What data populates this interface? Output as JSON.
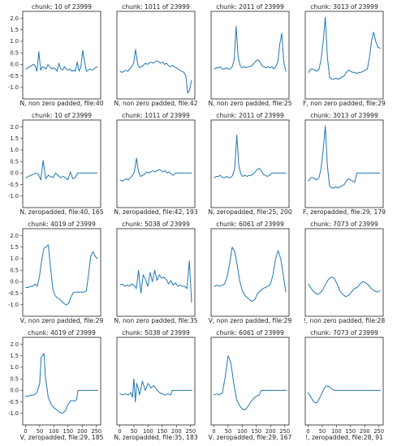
{
  "colors": {
    "series": "#1f77b4",
    "axes": "#222222",
    "background": "#ffffff"
  },
  "chart_data": [
    {
      "type": "line",
      "title": "chunk: 10 of 23999",
      "xlabel": "N, non zero padded, file:40",
      "ylim": [
        -1.5,
        2.3
      ],
      "yticks": [
        "2.0",
        "1.5",
        "1.0",
        "0.5",
        "0.0",
        "-0.5",
        "-1.0"
      ],
      "xticks": [],
      "y": [
        -0.2,
        -0.15,
        -0.1,
        -0.05,
        0,
        -0.05,
        -0.3,
        0.55,
        -0.25,
        -0.1,
        -0.15,
        -0.2,
        0,
        -0.1,
        -0.2,
        -0.15,
        -0.2,
        -0.3,
        0.05,
        -0.2,
        -0.25,
        -0.1,
        -0.2,
        -0.25,
        -0.2,
        -0.3,
        -0.25,
        -0.3,
        0.1,
        -0.3,
        -0.1,
        0.6,
        0.1,
        -0.3,
        -0.25,
        -0.2,
        -0.25,
        -0.2,
        -0.15,
        -0.1
      ]
    },
    {
      "type": "line",
      "title": "chunk: 1011 of 23999",
      "xlabel": "N, non zero padded, file:42",
      "ylim": [
        -1.5,
        2.3
      ],
      "yticks": [],
      "xticks": [],
      "y": [
        -0.3,
        -0.35,
        -0.3,
        -0.25,
        -0.3,
        -0.2,
        -0.1,
        0.05,
        0.65,
        0.05,
        -0.15,
        -0.1,
        -0.05,
        0.05,
        0,
        0.05,
        0.1,
        0.05,
        0.1,
        0.15,
        0.1,
        0.05,
        0.1,
        0,
        0.05,
        -0.05,
        -0.1,
        -0.05,
        -0.1,
        -0.15,
        -0.2,
        -0.25,
        -0.3,
        -0.35,
        -0.5,
        -1.25,
        -1.1,
        -0.7
      ]
    },
    {
      "type": "line",
      "title": "chunk: 2011 of 23999",
      "xlabel": "N, non zero padded, file:25",
      "ylim": [
        -1.5,
        2.3
      ],
      "yticks": [],
      "xticks": [],
      "y": [
        -0.2,
        -0.15,
        -0.15,
        -0.1,
        -0.2,
        -0.2,
        -0.15,
        -0.2,
        -0.2,
        -0.1,
        0.2,
        1.65,
        0.3,
        -0.05,
        -0.15,
        -0.1,
        -0.15,
        -0.1,
        -0.1,
        -0.05,
        0.05,
        0.15,
        0.2,
        0.1,
        -0.05,
        -0.1,
        -0.15,
        -0.1,
        -0.15,
        -0.1,
        -0.2,
        -0.1,
        0.1,
        0.9,
        1.35,
        0.1,
        -0.3
      ]
    },
    {
      "type": "line",
      "title": "chunk: 3013 of 23999",
      "xlabel": "F, non zero padded, file:29",
      "ylim": [
        -1.5,
        2.3
      ],
      "yticks": [],
      "xticks": [],
      "y": [
        -0.35,
        -0.2,
        -0.2,
        -0.25,
        -0.3,
        -0.2,
        0.2,
        1.0,
        2.05,
        0.3,
        -0.55,
        -0.65,
        -0.65,
        -0.6,
        -0.65,
        -0.6,
        -0.55,
        -0.5,
        -0.35,
        -0.25,
        -0.3,
        -0.35,
        -0.35,
        -0.4,
        -0.35,
        -0.35,
        -0.3,
        -0.25,
        -0.2,
        0.3,
        1.0,
        1.4,
        1.0,
        0.75,
        0.7
      ]
    },
    {
      "type": "line",
      "title": "chunk: 10 of 23999",
      "xlabel": "N, zeropadded, file:40, 165",
      "ylim": [
        -1.5,
        2.3
      ],
      "yticks": [
        "2.0",
        "1.5",
        "1.0",
        "0.5",
        "0.0",
        "-0.5",
        "-1.0"
      ],
      "xticks": [],
      "y": [
        -0.2,
        -0.15,
        -0.1,
        -0.05,
        0,
        -0.05,
        -0.3,
        0.55,
        -0.25,
        -0.1,
        -0.15,
        -0.2,
        0,
        -0.1,
        -0.2,
        -0.15,
        -0.2,
        -0.3,
        0.05,
        -0.25,
        -0.2,
        0,
        0,
        0,
        0,
        0,
        0,
        0,
        0,
        0
      ]
    },
    {
      "type": "line",
      "title": "chunk: 1011 of 23999",
      "xlabel": "N, zeropadded, file:42, 193",
      "ylim": [
        -1.5,
        2.3
      ],
      "yticks": [],
      "xticks": [],
      "y": [
        -0.3,
        -0.35,
        -0.3,
        -0.25,
        -0.3,
        -0.2,
        -0.1,
        0.05,
        0.65,
        0.05,
        -0.15,
        -0.1,
        -0.05,
        0.05,
        0,
        0.05,
        0.1,
        0.05,
        0.1,
        0.15,
        0.1,
        0.05,
        0.1,
        0,
        0.05,
        -0.05,
        -0.1,
        0,
        0,
        0,
        0,
        0,
        0,
        0,
        0,
        0
      ]
    },
    {
      "type": "line",
      "title": "chunk: 2011 of 23999",
      "xlabel": "N, zeropadded, file:25, 200",
      "ylim": [
        -1.5,
        2.3
      ],
      "yticks": [],
      "xticks": [],
      "y": [
        -0.2,
        -0.15,
        -0.15,
        -0.1,
        -0.2,
        -0.2,
        -0.15,
        -0.2,
        -0.2,
        -0.1,
        0.2,
        1.65,
        0.3,
        -0.05,
        -0.15,
        -0.1,
        -0.15,
        -0.1,
        -0.1,
        -0.05,
        0.05,
        0.15,
        0.2,
        0.1,
        -0.05,
        -0.1,
        -0.15,
        -0.1,
        0,
        0,
        0,
        0,
        0,
        0,
        0,
        0
      ]
    },
    {
      "type": "line",
      "title": "chunk: 3013 of 23999",
      "xlabel": "F, zeropadded, file:29, 179",
      "ylim": [
        -1.5,
        2.3
      ],
      "yticks": [],
      "xticks": [],
      "y": [
        -0.35,
        -0.2,
        -0.2,
        -0.25,
        -0.3,
        -0.2,
        0.2,
        1.0,
        2.05,
        0.3,
        -0.55,
        -0.65,
        -0.65,
        -0.6,
        -0.65,
        -0.6,
        -0.55,
        -0.5,
        -0.35,
        -0.25,
        -0.3,
        -0.35,
        -0.4,
        0,
        0,
        0,
        0,
        0,
        0,
        0,
        0,
        0,
        0,
        0,
        0
      ]
    },
    {
      "type": "line",
      "title": "chunk: 4019 of 23999",
      "xlabel": "V, non zero padded, file:29",
      "ylim": [
        -1.5,
        2.3
      ],
      "yticks": [
        "2.0",
        "1.5",
        "1.0",
        "0.5",
        "0.0",
        "-0.5",
        "-1.0"
      ],
      "xticks": [],
      "y": [
        -0.25,
        -0.25,
        -0.2,
        -0.2,
        -0.1,
        -0.2,
        0.2,
        0.9,
        1.45,
        1.5,
        1.6,
        0.6,
        -0.3,
        -0.6,
        -0.7,
        -0.75,
        -0.85,
        -0.95,
        -1.0,
        -0.95,
        -0.7,
        -0.5,
        -0.45,
        -0.45,
        -0.45,
        -0.45,
        -0.45,
        -0.4,
        0.3,
        1.1,
        1.3,
        1.1,
        1.0
      ]
    },
    {
      "type": "line",
      "title": "chunk: 5038 of 23999",
      "xlabel": "N, non zero padded, file:35",
      "ylim": [
        -1.5,
        2.3
      ],
      "yticks": [],
      "xticks": [],
      "y": [
        -0.15,
        -0.1,
        -0.2,
        -0.15,
        -0.2,
        -0.1,
        -0.15,
        -0.3,
        0.5,
        -0.5,
        0.3,
        0.1,
        -0.2,
        0.4,
        0,
        0.5,
        0.05,
        0.3,
        0.15,
        0.2,
        0.1,
        -0.1,
        0.05,
        -0.15,
        -0.05,
        -0.2,
        -0.15,
        -0.2,
        -0.2,
        -0.3,
        0.9,
        -0.9
      ]
    },
    {
      "type": "line",
      "title": "chunk: 6061 of 23999",
      "xlabel": "V, non zero padded, file:29",
      "ylim": [
        -1.5,
        2.3
      ],
      "yticks": [],
      "xticks": [],
      "y": [
        -0.2,
        -0.15,
        -0.2,
        -0.15,
        -0.1,
        0.2,
        0.8,
        1.5,
        1.3,
        0.7,
        0,
        -0.4,
        -0.6,
        -0.7,
        -0.8,
        -0.85,
        -0.75,
        -0.5,
        -0.4,
        -0.3,
        -0.25,
        -0.2,
        -0.1,
        0.3,
        1.0,
        1.35,
        1.0,
        0.3,
        -0.45
      ]
    },
    {
      "type": "line",
      "title": "chunk: 7073 of 23999",
      "xlabel": "!, non zero padded, file:28",
      "ylim": [
        -1.5,
        2.3
      ],
      "yticks": [],
      "xticks": [],
      "y": [
        -0.1,
        -0.3,
        -0.45,
        -0.55,
        -0.5,
        -0.35,
        -0.1,
        0.1,
        0.2,
        0.15,
        -0.1,
        -0.4,
        -0.55,
        -0.65,
        -0.6,
        -0.45,
        -0.3,
        -0.25,
        -0.1,
        0,
        -0.05,
        -0.15,
        -0.3,
        -0.4,
        -0.45,
        -0.4
      ]
    },
    {
      "type": "line",
      "title": "chunk: 4019 of 23999",
      "xlabel": "V, zeropadded, file:29, 185",
      "ylim": [
        -1.5,
        2.3
      ],
      "yticks": [
        "2.0",
        "1.5",
        "1.0",
        "0.5",
        "0.0",
        "-0.5",
        "-1.0"
      ],
      "xlim": [
        -10,
        265
      ],
      "xticks": [
        "0",
        "50",
        "100",
        "150",
        "200",
        "250"
      ],
      "x": [
        0,
        10,
        20,
        30,
        40,
        50,
        55,
        60,
        65,
        70,
        80,
        90,
        100,
        110,
        120,
        130,
        140,
        150,
        160,
        170,
        175,
        180,
        185,
        190,
        200,
        210,
        220,
        230,
        240,
        250,
        255
      ],
      "y": [
        -0.25,
        -0.25,
        -0.2,
        -0.2,
        -0.1,
        0.3,
        1.45,
        1.5,
        1.6,
        0.6,
        -0.3,
        -0.6,
        -0.75,
        -0.85,
        -0.95,
        -1.0,
        -0.9,
        -0.6,
        -0.45,
        -0.45,
        -0.45,
        -0.4,
        0,
        0,
        0,
        0,
        0,
        0,
        0,
        0,
        0
      ]
    },
    {
      "type": "line",
      "title": "chunk: 5038 of 23999",
      "xlabel": "N, zeropadded, file:35, 183",
      "ylim": [
        -1.5,
        2.3
      ],
      "yticks": [],
      "xlim": [
        -10,
        265
      ],
      "xticks": [
        "0",
        "50",
        "100",
        "150",
        "200",
        "250"
      ],
      "x": [
        0,
        10,
        20,
        30,
        40,
        45,
        50,
        55,
        60,
        65,
        70,
        80,
        90,
        100,
        110,
        120,
        130,
        140,
        150,
        160,
        170,
        180,
        185,
        190,
        200,
        210,
        220,
        230,
        240,
        250,
        255
      ],
      "y": [
        -0.15,
        -0.2,
        -0.15,
        -0.2,
        -0.1,
        -0.3,
        0.5,
        -0.5,
        0.3,
        0.1,
        -0.2,
        0.4,
        0,
        0.3,
        0.1,
        0.2,
        0.05,
        -0.1,
        -0.15,
        -0.2,
        -0.15,
        -0.2,
        0,
        0,
        0,
        0,
        0,
        0,
        0,
        0,
        0
      ]
    },
    {
      "type": "line",
      "title": "chunk: 6061 of 23999",
      "xlabel": "V, zeropadded, file:29, 167",
      "ylim": [
        -1.5,
        2.3
      ],
      "yticks": [],
      "xlim": [
        -10,
        265
      ],
      "xticks": [
        "0",
        "50",
        "100",
        "150",
        "200",
        "250"
      ],
      "x": [
        0,
        10,
        20,
        30,
        40,
        50,
        60,
        70,
        80,
        90,
        100,
        110,
        120,
        130,
        140,
        150,
        160,
        167,
        170,
        180,
        190,
        200,
        210,
        220,
        230,
        240,
        250,
        255
      ],
      "y": [
        -0.2,
        -0.15,
        -0.2,
        -0.1,
        0.6,
        1.5,
        1.2,
        0.3,
        -0.4,
        -0.65,
        -0.8,
        -0.85,
        -0.7,
        -0.5,
        -0.35,
        -0.25,
        -0.2,
        0,
        0,
        0,
        0,
        0,
        0,
        0,
        0,
        0,
        0,
        0
      ]
    },
    {
      "type": "line",
      "title": "chunk: 7073 of 23999",
      "xlabel": "!, zeropadded, file:28, 91",
      "ylim": [
        -1.5,
        2.3
      ],
      "yticks": [],
      "xlim": [
        -10,
        265
      ],
      "xticks": [
        "0",
        "50",
        "100",
        "150",
        "200",
        "250"
      ],
      "x": [
        0,
        10,
        20,
        30,
        40,
        50,
        60,
        70,
        80,
        91,
        100,
        120,
        140,
        160,
        180,
        200,
        220,
        240,
        255
      ],
      "y": [
        -0.1,
        -0.3,
        -0.5,
        -0.55,
        -0.35,
        -0.1,
        0.15,
        0.2,
        0.1,
        0,
        0,
        0,
        0,
        0,
        0,
        0,
        0,
        0,
        0
      ]
    }
  ]
}
